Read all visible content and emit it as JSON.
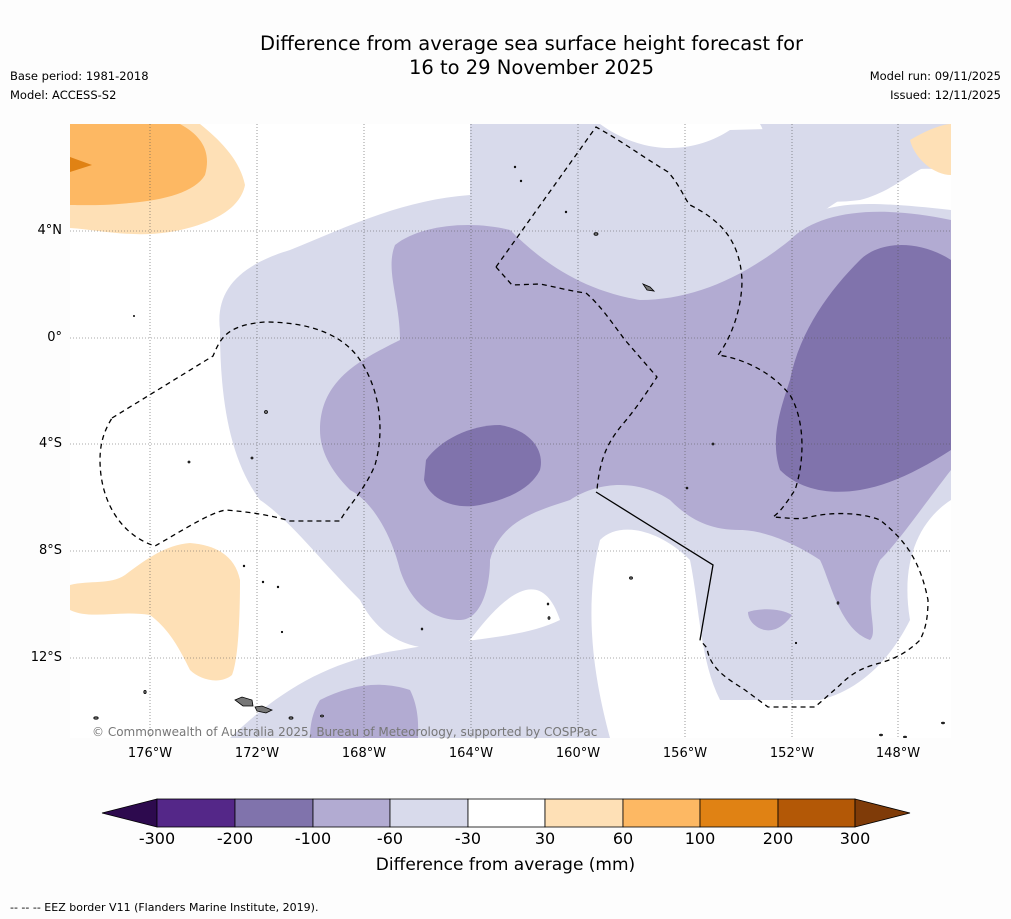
{
  "title": {
    "line1": "Difference from average sea surface height forecast for",
    "line2": "16 to 29 November 2025"
  },
  "meta": {
    "base_period": "Base period: 1981-2018",
    "model": "Model: ACCESS-S2",
    "model_run": "Model run: 09/11/2025",
    "issued": "Issued: 12/11/2025"
  },
  "axes": {
    "lat_labels": [
      "4°N",
      "0°",
      "4°S",
      "8°S",
      "12°S"
    ],
    "lon_labels": [
      "176°W",
      "172°W",
      "168°W",
      "164°W",
      "160°W",
      "156°W",
      "152°W",
      "148°W"
    ]
  },
  "copyright": "© Commonwealth of Australia 2025, Bureau of Meteorology, supported by COSPPac",
  "colorbar": {
    "ticks": [
      "-300",
      "-200",
      "-100",
      "-60",
      "-30",
      "30",
      "60",
      "100",
      "200",
      "300"
    ],
    "title": "Difference from average (mm)",
    "colors": [
      "#2d0a4e",
      "#542788",
      "#8073ac",
      "#b2abd2",
      "#d8daeb",
      "#ffffff",
      "#fee0b6",
      "#fdb863",
      "#e08214",
      "#b35806",
      "#7f3b08"
    ]
  },
  "legend": "--  --  -- EEZ border V11 (Flanders Marine Institute, 2019)."
}
